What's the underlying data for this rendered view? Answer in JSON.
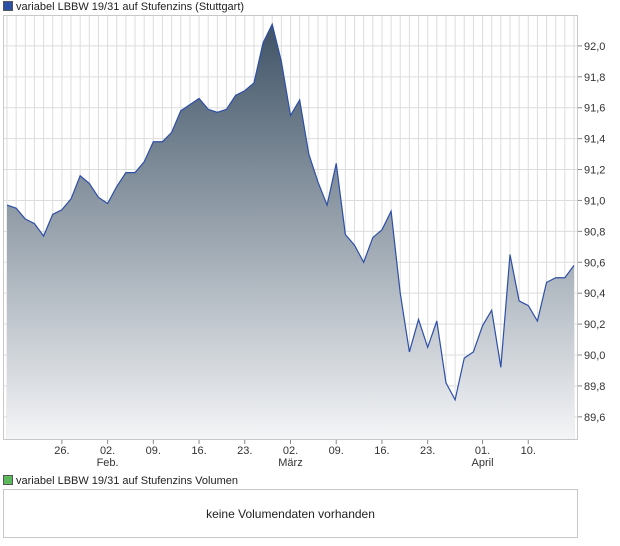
{
  "legend": {
    "main_label": "variabel LBBW 19/31 auf Stufenzins (Stuttgart)",
    "main_color": "#2e4fa6",
    "volume_label": "variabel LBBW 19/31 auf Stufenzins Volumen",
    "volume_color": "#5cb85c"
  },
  "volume": {
    "message": "keine Volumendaten vorhanden"
  },
  "colors": {
    "line": "#2e4fa6",
    "area_top": "#3f5366",
    "area_bottom": "#f4f5f7",
    "grid": "#dddddd",
    "frame": "#c8c8c8"
  },
  "chart_data": {
    "type": "area",
    "title": "",
    "xlabel": "",
    "ylabel": "",
    "ylim": [
      89.45,
      92.2
    ],
    "y_ticks": [
      89.6,
      89.8,
      90.0,
      90.2,
      90.4,
      90.6,
      90.8,
      91.0,
      91.2,
      91.4,
      91.6,
      91.8,
      92.0
    ],
    "y_tick_labels": [
      "89,6",
      "89,8",
      "90,0",
      "90,2",
      "90,4",
      "90,6",
      "90,8",
      "91,0",
      "91,2",
      "91,4",
      "91,6",
      "91,8",
      "92,0"
    ],
    "x_tick_labels": [
      {
        "label": "26.",
        "sublabel": "",
        "index": 6
      },
      {
        "label": "02.",
        "sublabel": "Feb.",
        "index": 11
      },
      {
        "label": "09.",
        "sublabel": "",
        "index": 16
      },
      {
        "label": "16.",
        "sublabel": "",
        "index": 21
      },
      {
        "label": "23.",
        "sublabel": "",
        "index": 26
      },
      {
        "label": "02.",
        "sublabel": "März",
        "index": 31
      },
      {
        "label": "09.",
        "sublabel": "",
        "index": 36
      },
      {
        "label": "16.",
        "sublabel": "",
        "index": 41
      },
      {
        "label": "23.",
        "sublabel": "",
        "index": 46
      },
      {
        "label": "01.",
        "sublabel": "April",
        "index": 52
      },
      {
        "label": "10.",
        "sublabel": "",
        "index": 57
      }
    ],
    "series": [
      {
        "values": [
          90.97,
          90.95,
          90.88,
          90.85,
          90.77,
          90.91,
          90.94,
          91.01,
          91.16,
          91.11,
          91.02,
          90.98,
          91.09,
          91.18,
          91.18,
          91.25,
          91.38,
          91.38,
          91.44,
          91.58,
          91.62,
          91.66,
          91.59,
          91.57,
          91.59,
          91.68,
          91.71,
          91.76,
          92.02,
          92.14,
          91.9,
          91.55,
          91.65,
          91.3,
          91.12,
          90.97,
          91.24,
          90.78,
          90.71,
          90.6,
          90.76,
          90.81,
          90.93,
          90.4,
          90.02,
          90.23,
          90.05,
          90.22,
          89.82,
          89.71,
          89.98,
          90.02,
          90.19,
          90.29,
          89.92,
          90.65,
          90.35,
          90.32,
          90.22,
          90.47,
          90.5,
          90.5,
          90.58
        ]
      }
    ],
    "grid": true,
    "legend_position": "top-left"
  }
}
